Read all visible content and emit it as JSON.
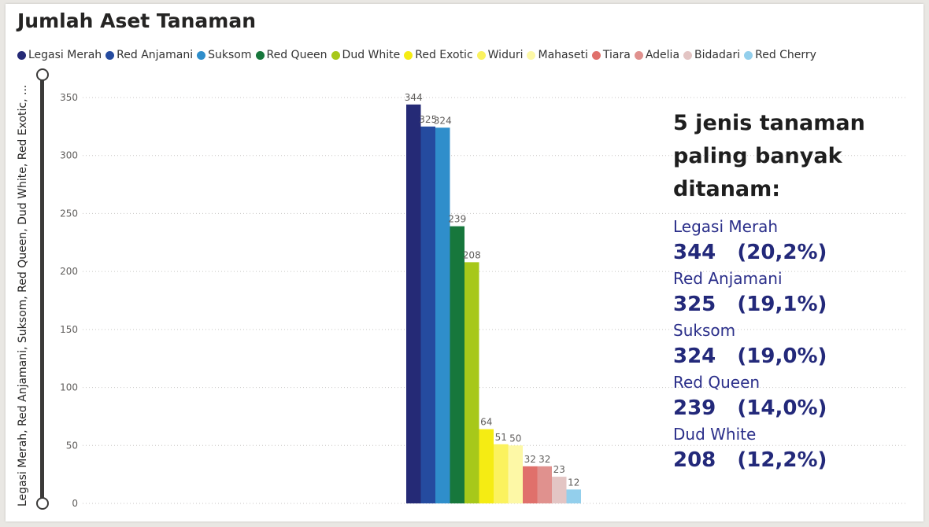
{
  "title": "Jumlah Aset Tanaman",
  "chart_data": {
    "type": "bar",
    "ylabel": "Legasi Merah, Red Anjamani, Suksom, Red Queen, Dud White, Red Exotic, ...",
    "ylim": [
      0,
      350
    ],
    "yticks": [
      0,
      50,
      100,
      150,
      200,
      250,
      300,
      350
    ],
    "grid": true,
    "legend_position": "top",
    "series": [
      {
        "name": "Legasi Merah",
        "value": 344,
        "color": "#252a76"
      },
      {
        "name": "Red Anjamani",
        "value": 325,
        "color": "#254b9f"
      },
      {
        "name": "Suksom",
        "value": 324,
        "color": "#2f8ecb"
      },
      {
        "name": "Red Queen",
        "value": 239,
        "color": "#17773c"
      },
      {
        "name": "Dud White",
        "value": 208,
        "color": "#a7c81a"
      },
      {
        "name": "Red Exotic",
        "value": 64,
        "color": "#f5ec13"
      },
      {
        "name": "Widuri",
        "value": 51,
        "color": "#fbf25e"
      },
      {
        "name": "Mahaseti",
        "value": 50,
        "color": "#fdf8a6"
      },
      {
        "name": "Tiara",
        "value": 32,
        "color": "#e0706b"
      },
      {
        "name": "Adelia",
        "value": 32,
        "color": "#e0918e"
      },
      {
        "name": "Bidadari",
        "value": 23,
        "color": "#e3c5c4"
      },
      {
        "name": "Red Cherry",
        "value": 12,
        "color": "#93cfec"
      }
    ]
  },
  "callout": {
    "heading": "5 jenis tanaman paling banyak ditanam:",
    "items": [
      {
        "name": "Legasi Merah",
        "value": "344   (20,2%)"
      },
      {
        "name": "Red Anjamani",
        "value": "325   (19,1%)"
      },
      {
        "name": "Suksom",
        "value": "324   (19,0%)"
      },
      {
        "name": "Red Queen",
        "value": "239   (14,0%)"
      },
      {
        "name": "Dud White",
        "value": "208   (12,2%)"
      }
    ]
  }
}
